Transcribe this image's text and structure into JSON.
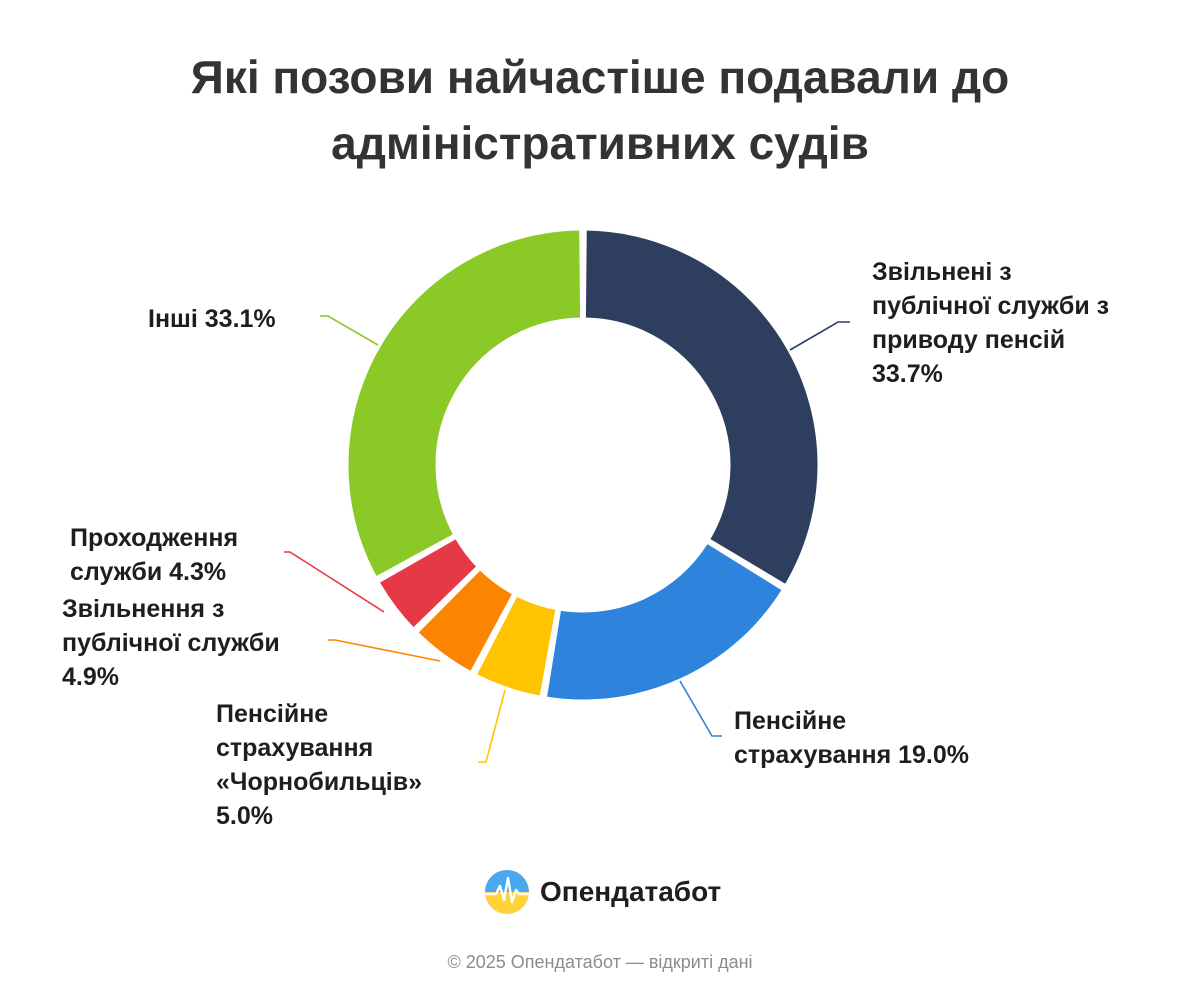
{
  "chart_data": {
    "type": "pie",
    "title_lines": [
      "Які позови найчастіше подавали до",
      "адміністративних судів"
    ],
    "slices": [
      {
        "name": "Звільнені з публічної служби з приводу пенсій",
        "value": 33.7,
        "value_label": "33.7%",
        "color": "#2e3e5e",
        "label_lines": [
          "Звільнені з",
          "публічної служби з",
          "приводу пенсій",
          "33.7%"
        ]
      },
      {
        "name": "Пенсійне страхування",
        "value": 19.0,
        "value_label": "19.0%",
        "color": "#2e83dc",
        "label_lines": [
          "Пенсійне",
          "страхування 19.0%"
        ]
      },
      {
        "name": "Пенсійне страхування «Чорнобильців»",
        "value": 5.0,
        "value_label": "5.0%",
        "color": "#ffc300",
        "label_lines": [
          "Пенсійне",
          "страхування",
          "«Чорнобильців»",
          "5.0%"
        ]
      },
      {
        "name": "Звільнення з публічної служби",
        "value": 4.9,
        "value_label": "4.9%",
        "color": "#fb8500",
        "label_lines": [
          "Звільнення з",
          "публічної служби",
          "4.9%"
        ]
      },
      {
        "name": "Проходження служби",
        "value": 4.3,
        "value_label": "4.3%",
        "color": "#e63946",
        "label_lines": [
          "Проходження",
          "служби 4.3%"
        ]
      },
      {
        "name": "Інші",
        "value": 33.1,
        "value_label": "33.1%",
        "color": "#8ac926",
        "label_lines": [
          "Інші 33.1%"
        ]
      }
    ],
    "legend": "none"
  },
  "brand": {
    "name": "Опендатабот",
    "logo_icon": "opendatabot-logo-icon"
  },
  "footer": {
    "text": "© 2025 Опендатабот — відкриті дані"
  }
}
